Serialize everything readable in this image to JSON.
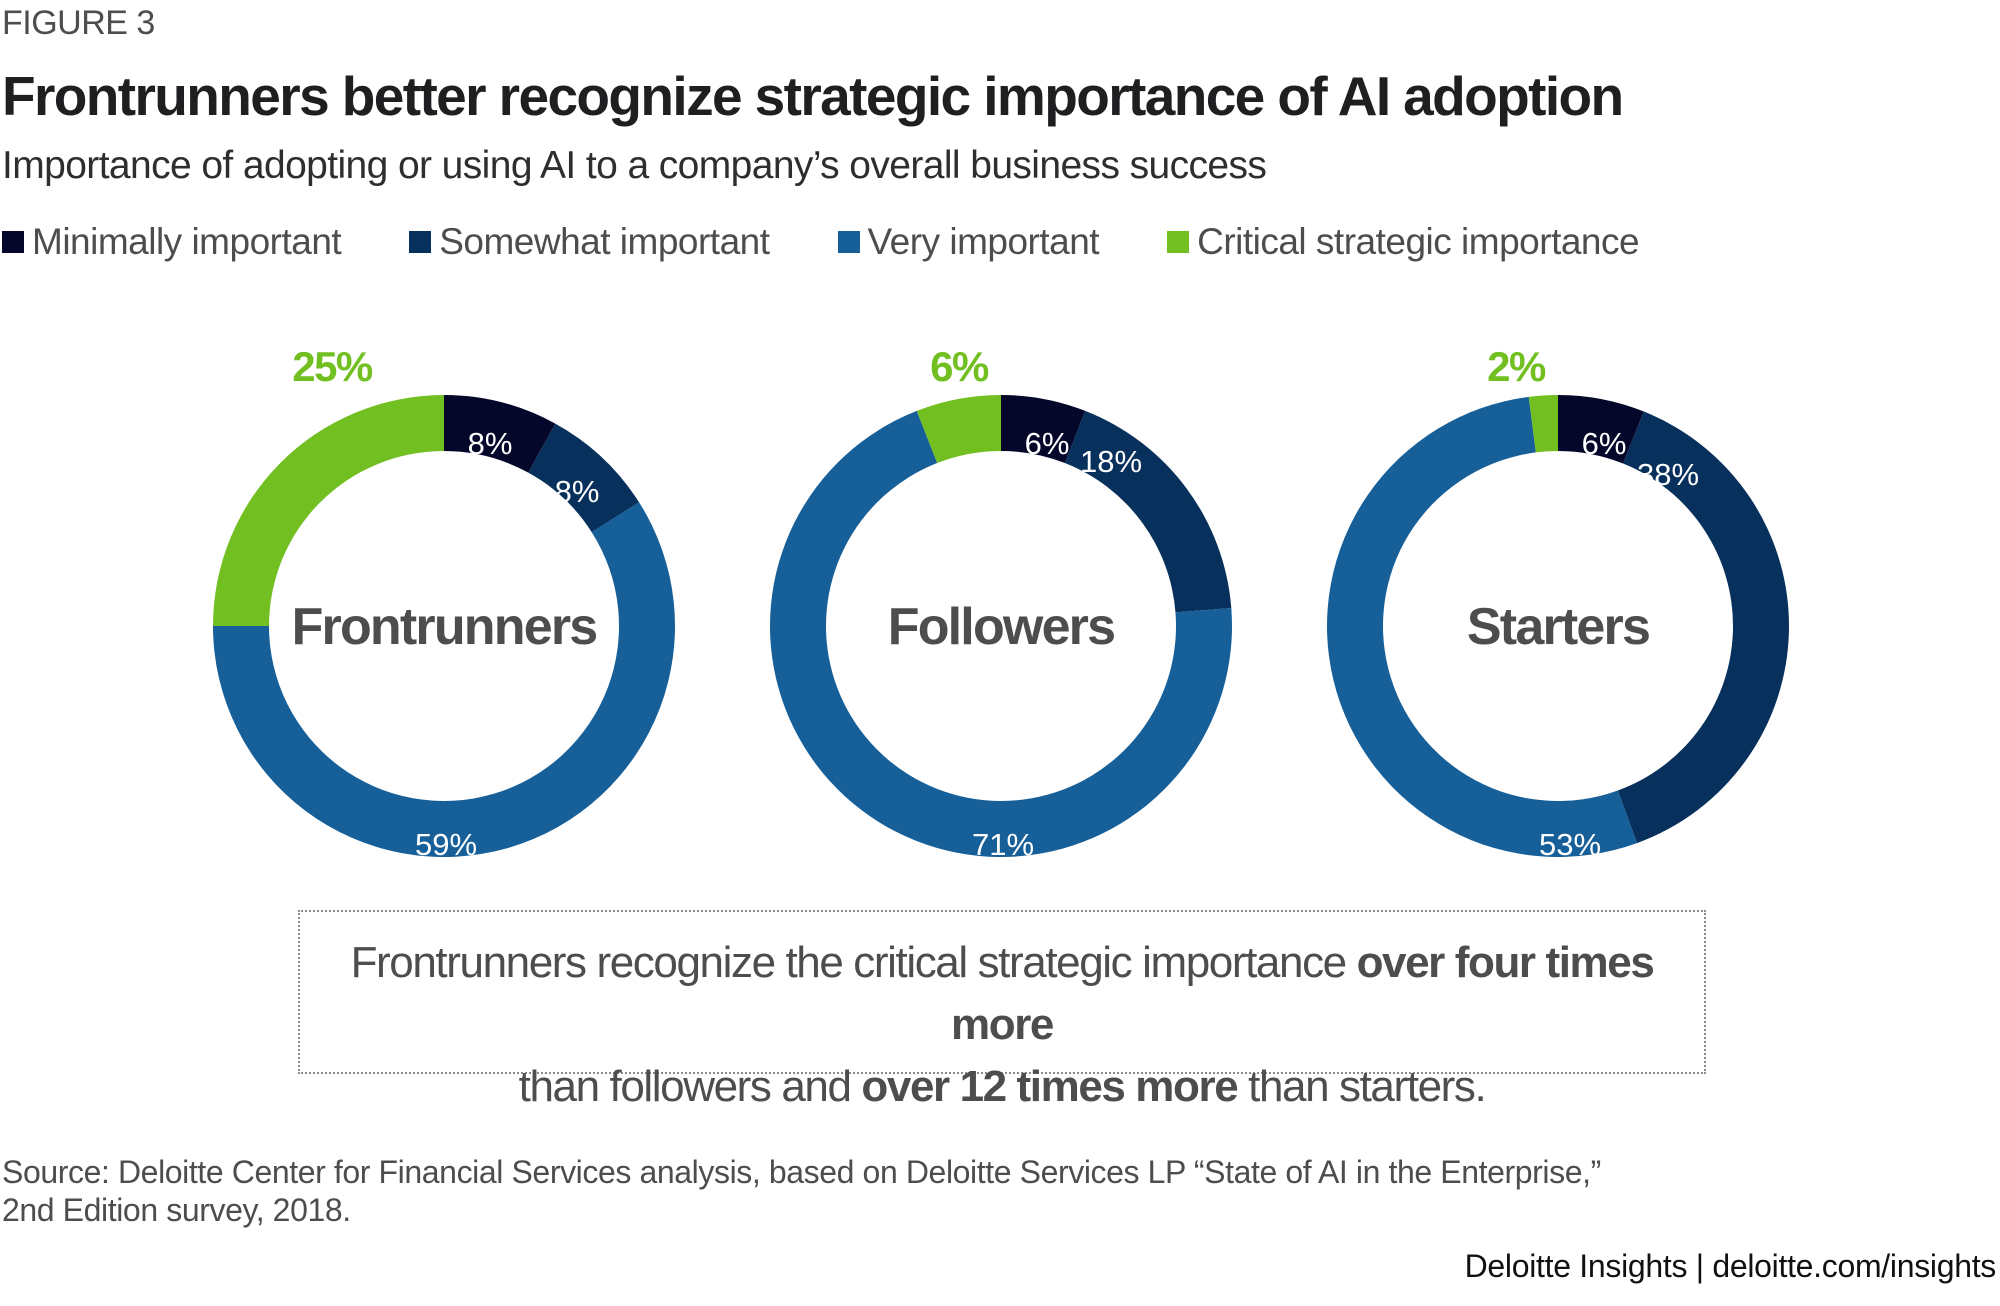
{
  "figure_label": "FIGURE 3",
  "title": "Frontrunners better recognize strategic importance of AI adoption",
  "subtitle": "Importance of adopting or using AI to a company’s overall business success",
  "legend": [
    {
      "label": "Minimally important",
      "color": "#05072a"
    },
    {
      "label": "Somewhat important",
      "color": "#08305c"
    },
    {
      "label": "Very important",
      "color": "#165f99"
    },
    {
      "label": "Critical strategic importance",
      "color": "#72bf21"
    }
  ],
  "chart_data": {
    "type": "pie",
    "subtype": "donut",
    "title": "Frontrunners better recognize strategic importance of AI adoption",
    "subtitle": "Importance of adopting or using AI to a company’s overall business success",
    "categories": [
      "Minimally important",
      "Somewhat important",
      "Very important",
      "Critical strategic importance"
    ],
    "colors": [
      "#05072a",
      "#08305c",
      "#165f99",
      "#72bf21"
    ],
    "legend_position": "top-left",
    "series": [
      {
        "name": "Frontrunners",
        "values": [
          8,
          8,
          59,
          25
        ],
        "labels": [
          "8%",
          "8%",
          "59%",
          "25%"
        ]
      },
      {
        "name": "Followers",
        "values": [
          6,
          18,
          71,
          6
        ],
        "labels": [
          "6%",
          "18%",
          "71%",
          "6%"
        ]
      },
      {
        "name": "Starters",
        "values": [
          6,
          38,
          53,
          2
        ],
        "labels": [
          "6%",
          "38%",
          "53%",
          "2%"
        ]
      }
    ]
  },
  "callout": {
    "part1": "Frontrunners recognize the critical strategic importance ",
    "bold1": "over four times more",
    "part2": "than followers and ",
    "bold2": "over 12 times more",
    "part3": " than starters."
  },
  "source": {
    "line1": "Source: Deloitte Center for Financial Services analysis, based on Deloitte Services LP “State of AI in the Enterprise,”",
    "line2": "2nd Edition survey, 2018."
  },
  "brand": "Deloitte Insights | deloitte.com/insights"
}
